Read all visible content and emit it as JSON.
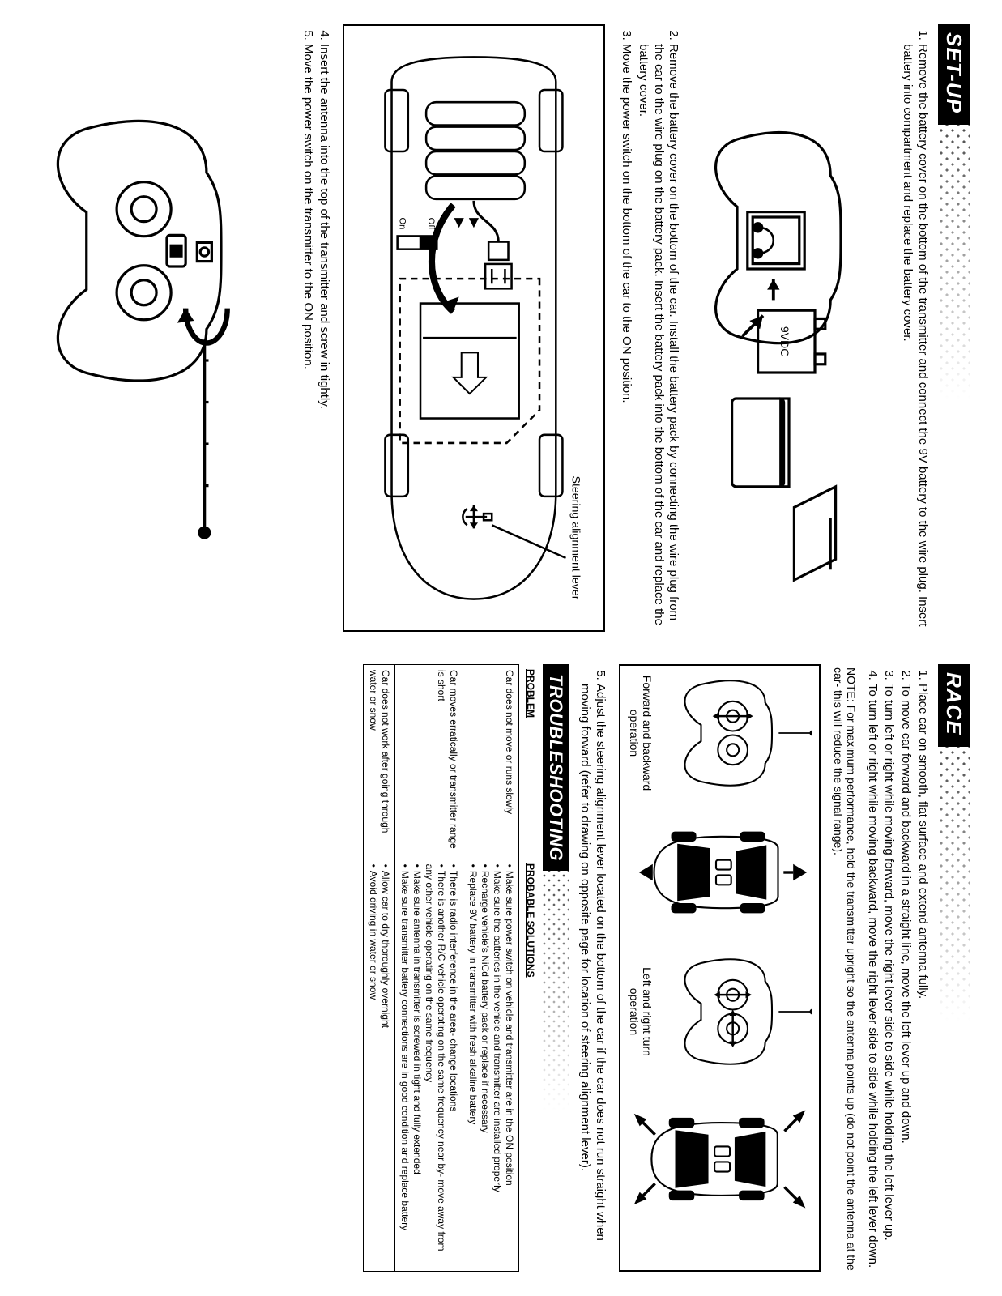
{
  "setup": {
    "title": "SET-UP",
    "steps": [
      "Remove the battery cover on the bottom of the transmitter and connect the 9V battery to the wire plug. Insert battery into compartment and replace the battery cover.",
      "Remove the battery cover on the bottom of the car. Install the battery pack by connecting the wire plug from the car to the wire plug on the battery pack. Insert the battery pack into the bottom of the car and replace the battery cover.",
      "Move the power switch on the bottom of the car to the ON position.",
      "Insert the antenna into the top of the transmitter and screw in tightly.",
      "Move the power switch on the transmitter to the ON position."
    ],
    "fig2_label": "Steering alignment lever",
    "fig2_on": "On",
    "fig2_off": "Off",
    "fig1_9v": "9VDC"
  },
  "race": {
    "title": "RACE",
    "steps": [
      "Place car on smooth, flat surface and extend antenna fully.",
      "To move car forward and backward in a straight line, move the left lever up and down.",
      "To turn left or right while moving forward, move the right lever side to side while holding the left lever up.",
      "To turn left or right while moving backward, move the right lever side to side while holding the left lever down."
    ],
    "note": "NOTE:  For maximum performance, hold the transmitter upright so the antenna points up (do not point the antenna at the car- this will reduce the signal range).",
    "cap_fwd": "Forward and backward operation",
    "cap_turn": "Left and right turn operation",
    "step5": "Adjust the steering alignment lever located on the bottom of the car if the car does not run straight when moving forward (refer to drawing on opposite page for location of steering alignment lever)."
  },
  "troubleshooting": {
    "title": "TROUBLESHOOTING",
    "col_problem": "PROBLEM",
    "col_solutions": "PROBABLE SOLUTIONS",
    "rows": [
      {
        "problem": "Car does not move or runs slowly",
        "solutions": [
          "Make sure power switch on vehicle and transmitter are in the ON position",
          "Make sure the batteries in the vehicle and transmitter are installed properly",
          "Recharge vehicle's NiCd battery pack or replace if necessary",
          "Replace 9V battery in transmitter with fresh alkaline battery"
        ]
      },
      {
        "problem": "Car moves erratically or transmitter range is short",
        "solutions": [
          "There is radio interference in the area- change locations",
          "There is another R/C vehicle operating on the same frequency near by- move away from any other vehicle operating on the same frequency",
          "Make sure antenna in transmitter is screwed in tight and fully extended",
          "Make sure transmitter battery connections are in good condition and replace battery"
        ]
      },
      {
        "problem": "Car does not work after going through water or snow",
        "solutions": [
          "Allow car to dry thoroughly overnight",
          "Avoid driving in water or snow"
        ]
      }
    ]
  }
}
